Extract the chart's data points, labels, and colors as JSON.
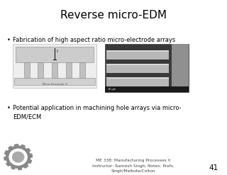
{
  "title": "Reverse micro-EDM",
  "bullet1": "Fabrication of high aspect ratio micro-electrode arrays",
  "bullet2": "Potential application in machining hole arrays via micro-\nEDM/ECM",
  "footer_line1": "ME 338: Manufacturing Processes II",
  "footer_line2": "Instructor: Ramesh Singh; Notes: Profs.",
  "footer_line3": "Singh/Melkote/Colton",
  "page_num": "41",
  "slide_bg": "#ffffff",
  "title_fontsize": 11,
  "bullet_fontsize": 6.0,
  "footer_fontsize": 4.2,
  "page_fontsize": 7.5
}
